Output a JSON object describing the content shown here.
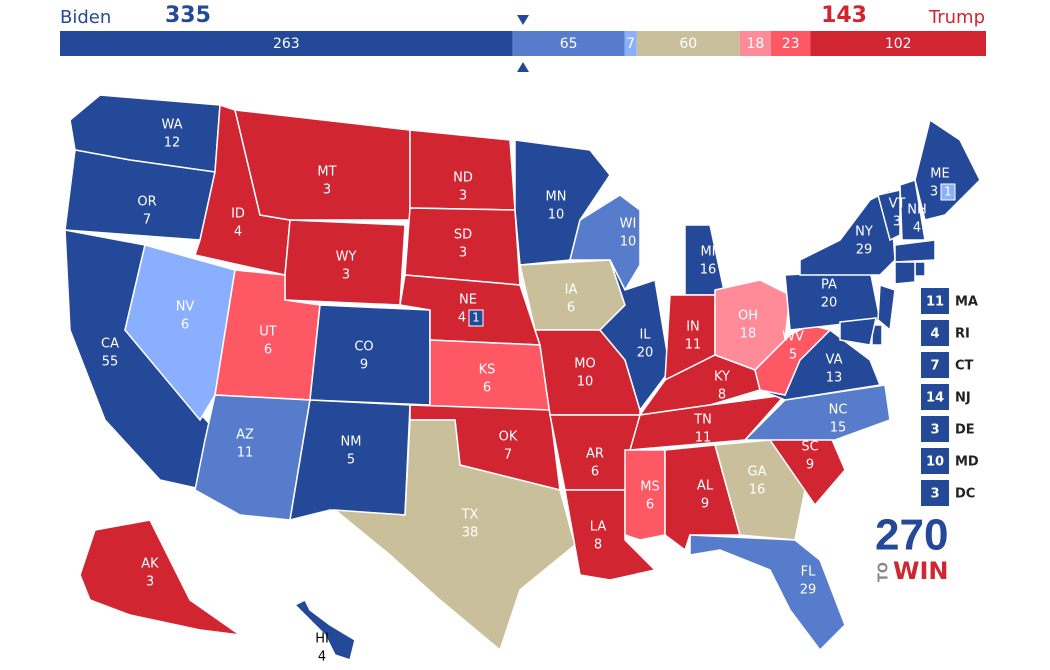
{
  "header": {
    "left_name": "Biden",
    "left_total": 335,
    "right_total": 143,
    "right_name": "Trump",
    "left_color": "#244999",
    "right_color": "#D22532"
  },
  "bar": {
    "segments": [
      {
        "value": 263,
        "color": "#244999"
      },
      {
        "value": 65,
        "color": "#577CCC"
      },
      {
        "value": 7,
        "color": "#8AAFFF"
      },
      {
        "value": 60,
        "color": "#C9C09B"
      },
      {
        "value": 18,
        "color": "#FF8B98"
      },
      {
        "value": 23,
        "color": "#FF5865"
      },
      {
        "value": 102,
        "color": "#D22532"
      }
    ]
  },
  "states": [
    {
      "abbr": "WA",
      "ev": 12,
      "color": "#244999"
    },
    {
      "abbr": "OR",
      "ev": 7,
      "color": "#244999"
    },
    {
      "abbr": "CA",
      "ev": 55,
      "color": "#244999"
    },
    {
      "abbr": "NV",
      "ev": 6,
      "color": "#8AAFFF"
    },
    {
      "abbr": "ID",
      "ev": 4,
      "color": "#D22532"
    },
    {
      "abbr": "MT",
      "ev": 3,
      "color": "#D22532"
    },
    {
      "abbr": "WY",
      "ev": 3,
      "color": "#D22532"
    },
    {
      "abbr": "UT",
      "ev": 6,
      "color": "#FF5865"
    },
    {
      "abbr": "AZ",
      "ev": 11,
      "color": "#577CCC"
    },
    {
      "abbr": "CO",
      "ev": 9,
      "color": "#244999"
    },
    {
      "abbr": "NM",
      "ev": 5,
      "color": "#244999"
    },
    {
      "abbr": "ND",
      "ev": 3,
      "color": "#D22532"
    },
    {
      "abbr": "SD",
      "ev": 3,
      "color": "#D22532"
    },
    {
      "abbr": "NE",
      "ev": 4,
      "color": "#D22532",
      "district": {
        "ev": 1,
        "color": "#244999"
      }
    },
    {
      "abbr": "KS",
      "ev": 6,
      "color": "#FF5865"
    },
    {
      "abbr": "OK",
      "ev": 7,
      "color": "#D22532"
    },
    {
      "abbr": "TX",
      "ev": 38,
      "color": "#C9C09B"
    },
    {
      "abbr": "MN",
      "ev": 10,
      "color": "#244999"
    },
    {
      "abbr": "IA",
      "ev": 6,
      "color": "#C9C09B"
    },
    {
      "abbr": "MO",
      "ev": 10,
      "color": "#D22532"
    },
    {
      "abbr": "AR",
      "ev": 6,
      "color": "#D22532"
    },
    {
      "abbr": "LA",
      "ev": 8,
      "color": "#D22532"
    },
    {
      "abbr": "WI",
      "ev": 10,
      "color": "#577CCC"
    },
    {
      "abbr": "IL",
      "ev": 20,
      "color": "#244999"
    },
    {
      "abbr": "MI",
      "ev": 16,
      "color": "#244999"
    },
    {
      "abbr": "IN",
      "ev": 11,
      "color": "#D22532"
    },
    {
      "abbr": "OH",
      "ev": 18,
      "color": "#FF8B98"
    },
    {
      "abbr": "KY",
      "ev": 8,
      "color": "#D22532"
    },
    {
      "abbr": "TN",
      "ev": 11,
      "color": "#D22532"
    },
    {
      "abbr": "MS",
      "ev": 6,
      "color": "#FF5865"
    },
    {
      "abbr": "AL",
      "ev": 9,
      "color": "#D22532"
    },
    {
      "abbr": "GA",
      "ev": 16,
      "color": "#C9C09B"
    },
    {
      "abbr": "FL",
      "ev": 29,
      "color": "#577CCC"
    },
    {
      "abbr": "SC",
      "ev": 9,
      "color": "#D22532"
    },
    {
      "abbr": "NC",
      "ev": 15,
      "color": "#577CCC"
    },
    {
      "abbr": "VA",
      "ev": 13,
      "color": "#244999"
    },
    {
      "abbr": "WV",
      "ev": 5,
      "color": "#FF5865"
    },
    {
      "abbr": "PA",
      "ev": 20,
      "color": "#244999"
    },
    {
      "abbr": "NY",
      "ev": 29,
      "color": "#244999"
    },
    {
      "abbr": "VT",
      "ev": 3,
      "color": "#244999"
    },
    {
      "abbr": "NH",
      "ev": 4,
      "color": "#244999"
    },
    {
      "abbr": "ME",
      "ev": 3,
      "color": "#244999",
      "district": {
        "ev": 1,
        "color": "#8AAFFF"
      }
    },
    {
      "abbr": "AK",
      "ev": 3,
      "color": "#D22532"
    },
    {
      "abbr": "HI",
      "ev": 4,
      "color": "#244999"
    },
    {
      "abbr": "MA",
      "ev": 11,
      "color": "#244999"
    },
    {
      "abbr": "RI",
      "ev": 4,
      "color": "#244999"
    },
    {
      "abbr": "CT",
      "ev": 7,
      "color": "#244999"
    },
    {
      "abbr": "NJ",
      "ev": 14,
      "color": "#244999"
    },
    {
      "abbr": "DE",
      "ev": 3,
      "color": "#244999"
    },
    {
      "abbr": "MD",
      "ev": 10,
      "color": "#244999"
    },
    {
      "abbr": "DC",
      "ev": 3,
      "color": "#244999"
    }
  ],
  "logo": {
    "number": "270",
    "small": "TO",
    "word": "WIN"
  }
}
